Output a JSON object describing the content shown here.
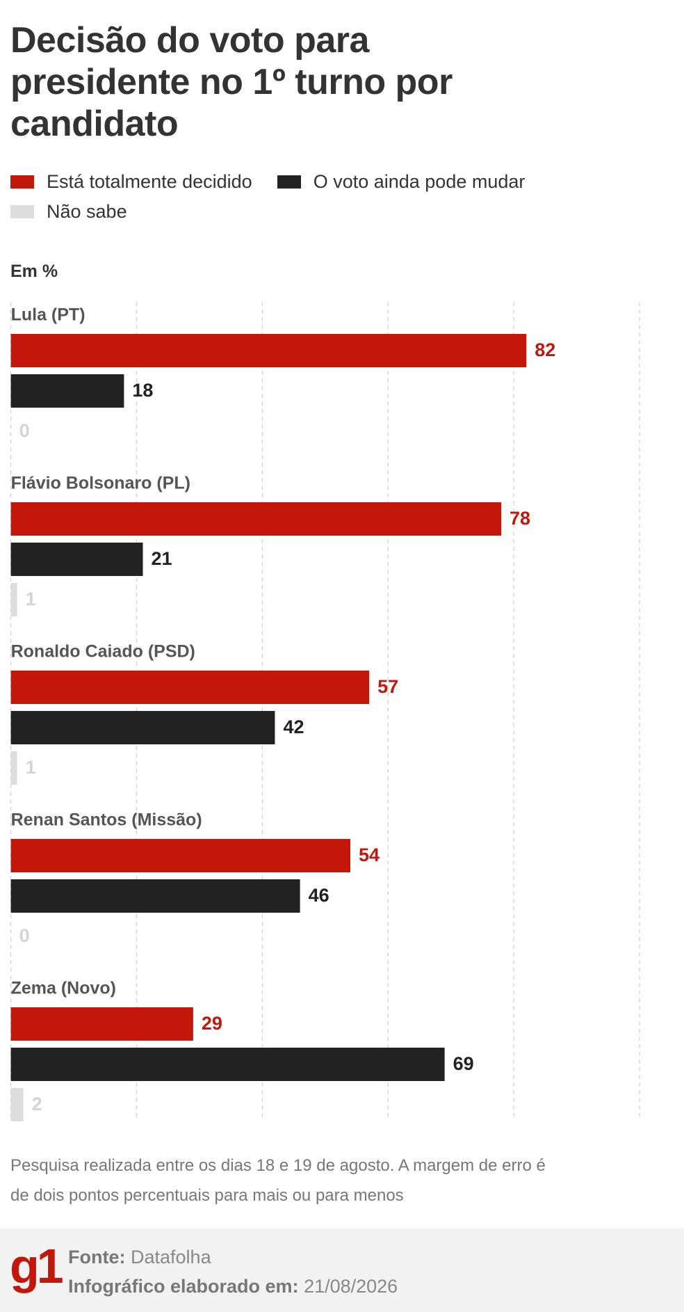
{
  "chart_data": {
    "type": "grouped-horizontal-bar",
    "title": "Decisão do voto para presidente no 1º turno por candidato",
    "subtitle": "Em %",
    "categories": [
      "Lula (PT)",
      "Flávio Bolsonaro (PL)",
      "Ronaldo Caiado (PSD)",
      "Renan Santos (Missão)",
      "Zema (Novo)"
    ],
    "series": [
      {
        "name": "Está totalmente decidido",
        "color": "#c4170c",
        "label_color": "#c4170c",
        "values": [
          82,
          78,
          57,
          54,
          29
        ]
      },
      {
        "name": "O voto ainda pode mudar",
        "color": "#222222",
        "label_color": "#222222",
        "values": [
          18,
          21,
          42,
          46,
          69
        ]
      },
      {
        "name": "Não sabe",
        "color": "#dddddd",
        "label_color": "#d4d4d4",
        "values": [
          0,
          1,
          1,
          0,
          2
        ]
      }
    ],
    "xlim": [
      0,
      100
    ],
    "xticks": [
      0,
      20,
      40,
      60,
      80,
      100
    ],
    "grid": true,
    "note": "Pesquisa realizada entre os dias 18 e 19 de agosto. A margem de erro é de dois pontos percentuais para mais ou para menos"
  },
  "footer": {
    "logo": "g1",
    "source_label": "Fonte:",
    "source": "Datafolha",
    "credit_label": "Infográfico elaborado em:",
    "date": "21/08/2026"
  }
}
